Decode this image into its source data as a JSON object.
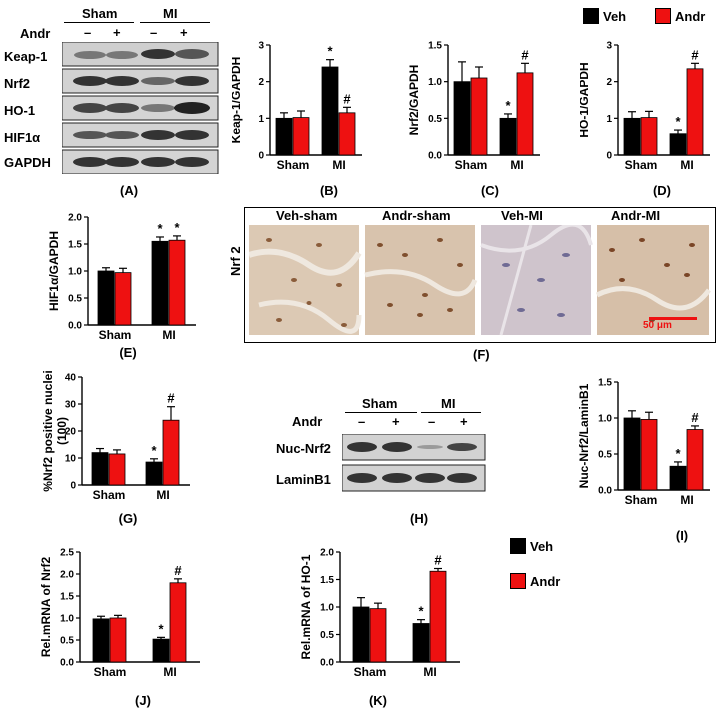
{
  "colors": {
    "veh": "#000000",
    "andr": "#ee1111"
  },
  "legend": {
    "veh": "Veh",
    "andr": "Andr"
  },
  "western_A": {
    "group_sham": "Sham",
    "group_mi": "MI",
    "treat_label": "Andr",
    "treat_marks": [
      "–",
      "+",
      "–",
      "+"
    ],
    "rows": [
      "Keap-1",
      "Nrf2",
      "HO-1",
      "HIF1α",
      "GAPDH"
    ],
    "panel": "(A)"
  },
  "western_H": {
    "group_sham": "Sham",
    "group_mi": "MI",
    "treat_label": "Andr",
    "treat_marks": [
      "–",
      "+",
      "–",
      "+"
    ],
    "rows": [
      "Nuc-Nrf2",
      "LaminB1"
    ],
    "panel": "(H)"
  },
  "micro_F": {
    "titles": [
      "Veh-sham",
      "Andr-sham",
      "Veh-MI",
      "Andr-MI"
    ],
    "row_label": "Nrf 2",
    "scale": "50 μm",
    "panel": "(F)"
  },
  "chart_data": [
    {
      "id": "B",
      "type": "bar",
      "panel": "(B)",
      "ylabel": "Keap-1/GAPDH",
      "categories": [
        "Sham",
        "MI"
      ],
      "series": [
        {
          "name": "Veh",
          "values": [
            1.0,
            2.4
          ],
          "err": [
            0.15,
            0.2
          ]
        },
        {
          "name": "Andr",
          "values": [
            1.02,
            1.15
          ],
          "err": [
            0.18,
            0.15
          ]
        }
      ],
      "ylim": [
        0,
        3
      ],
      "yticks": [
        0,
        1,
        2,
        3
      ],
      "ticklabels": [
        "0",
        "1",
        "2",
        "3"
      ],
      "marks": [
        {
          "series": 1,
          "cat": 1,
          "sym": "*"
        },
        {
          "series": 2,
          "cat": 1,
          "sym": "#"
        }
      ]
    },
    {
      "id": "C",
      "type": "bar",
      "panel": "(C)",
      "ylabel": "Nrf2/GAPDH",
      "categories": [
        "Sham",
        "MI"
      ],
      "series": [
        {
          "name": "Veh",
          "values": [
            1.0,
            0.5
          ],
          "err": [
            0.27,
            0.06
          ]
        },
        {
          "name": "Andr",
          "values": [
            1.05,
            1.12
          ],
          "err": [
            0.15,
            0.13
          ]
        }
      ],
      "ylim": [
        0,
        1.5
      ],
      "yticks": [
        0,
        0.5,
        1,
        1.5
      ],
      "ticklabels": [
        "0.0",
        "0.5",
        "1.0",
        "1.5"
      ],
      "marks": [
        {
          "series": 1,
          "cat": 1,
          "sym": "*"
        },
        {
          "series": 2,
          "cat": 1,
          "sym": "#"
        }
      ]
    },
    {
      "id": "D",
      "type": "bar",
      "panel": "(D)",
      "ylabel": "HO-1/GAPDH",
      "categories": [
        "Sham",
        "MI"
      ],
      "series": [
        {
          "name": "Veh",
          "values": [
            1.0,
            0.58
          ],
          "err": [
            0.18,
            0.1
          ]
        },
        {
          "name": "Andr",
          "values": [
            1.02,
            2.35
          ],
          "err": [
            0.17,
            0.15
          ]
        }
      ],
      "ylim": [
        0,
        3
      ],
      "yticks": [
        0,
        1,
        2,
        3
      ],
      "ticklabels": [
        "0",
        "1",
        "2",
        "3"
      ],
      "marks": [
        {
          "series": 1,
          "cat": 1,
          "sym": "*"
        },
        {
          "series": 2,
          "cat": 1,
          "sym": "#"
        }
      ]
    },
    {
      "id": "E",
      "type": "bar",
      "panel": "(E)",
      "ylabel": "HIF1α/GAPDH",
      "categories": [
        "Sham",
        "MI"
      ],
      "series": [
        {
          "name": "Veh",
          "values": [
            1.0,
            1.55
          ],
          "err": [
            0.06,
            0.08
          ]
        },
        {
          "name": "Andr",
          "values": [
            0.97,
            1.57
          ],
          "err": [
            0.08,
            0.08
          ]
        }
      ],
      "ylim": [
        0,
        2
      ],
      "yticks": [
        0,
        0.5,
        1,
        1.5,
        2
      ],
      "ticklabels": [
        "0.0",
        "0.5",
        "1.0",
        "1.5",
        "2.0"
      ],
      "marks": [
        {
          "series": 1,
          "cat": 1,
          "sym": "*"
        },
        {
          "series": 2,
          "cat": 1,
          "sym": "*"
        }
      ]
    },
    {
      "id": "G",
      "type": "bar",
      "panel": "(G)",
      "ylabel": "%Nrf2 positive nuclei",
      "ylabel2": "(100)",
      "categories": [
        "Sham",
        "MI"
      ],
      "series": [
        {
          "name": "Veh",
          "values": [
            12,
            8.5
          ],
          "err": [
            1.5,
            1.2
          ]
        },
        {
          "name": "Andr",
          "values": [
            11.5,
            24
          ],
          "err": [
            1.5,
            5
          ]
        }
      ],
      "ylim": [
        0,
        40
      ],
      "yticks": [
        0,
        10,
        20,
        30,
        40
      ],
      "ticklabels": [
        "0",
        "10",
        "20",
        "30",
        "40"
      ],
      "marks": [
        {
          "series": 1,
          "cat": 1,
          "sym": "*"
        },
        {
          "series": 2,
          "cat": 1,
          "sym": "#"
        }
      ]
    },
    {
      "id": "I",
      "type": "bar",
      "panel": "(I)",
      "ylabel": "Nuc-Nrf2/LaminB1",
      "categories": [
        "Sham",
        "MI"
      ],
      "series": [
        {
          "name": "Veh",
          "values": [
            1.0,
            0.33
          ],
          "err": [
            0.1,
            0.06
          ]
        },
        {
          "name": "Andr",
          "values": [
            0.98,
            0.84
          ],
          "err": [
            0.1,
            0.05
          ]
        }
      ],
      "ylim": [
        0,
        1.5
      ],
      "yticks": [
        0,
        0.5,
        1,
        1.5
      ],
      "ticklabels": [
        "0.0",
        "0.5",
        "1.0",
        "1.5"
      ],
      "marks": [
        {
          "series": 1,
          "cat": 1,
          "sym": "*"
        },
        {
          "series": 2,
          "cat": 1,
          "sym": "#"
        }
      ]
    },
    {
      "id": "J",
      "type": "bar",
      "panel": "(J)",
      "ylabel": "Rel.mRNA of Nrf2",
      "categories": [
        "Sham",
        "MI"
      ],
      "series": [
        {
          "name": "Veh",
          "values": [
            0.98,
            0.52
          ],
          "err": [
            0.06,
            0.04
          ]
        },
        {
          "name": "Andr",
          "values": [
            1.0,
            1.8
          ],
          "err": [
            0.06,
            0.09
          ]
        }
      ],
      "ylim": [
        0,
        2.5
      ],
      "yticks": [
        0,
        0.5,
        1,
        1.5,
        2,
        2.5
      ],
      "ticklabels": [
        "0.0",
        "0.5",
        "1.0",
        "1.5",
        "2.0",
        "2.5"
      ],
      "marks": [
        {
          "series": 1,
          "cat": 1,
          "sym": "*"
        },
        {
          "series": 2,
          "cat": 1,
          "sym": "#"
        }
      ]
    },
    {
      "id": "K",
      "type": "bar",
      "panel": "(K)",
      "ylabel": "Rel.mRNA of HO-1",
      "categories": [
        "Sham",
        "MI"
      ],
      "series": [
        {
          "name": "Veh",
          "values": [
            1.0,
            0.7
          ],
          "err": [
            0.17,
            0.07
          ]
        },
        {
          "name": "Andr",
          "values": [
            0.97,
            1.65
          ],
          "err": [
            0.1,
            0.05
          ]
        }
      ],
      "ylim": [
        0,
        2
      ],
      "yticks": [
        0,
        0.5,
        1,
        1.5,
        2
      ],
      "ticklabels": [
        "0.0",
        "0.5",
        "1.0",
        "1.5",
        "2.0"
      ],
      "marks": [
        {
          "series": 1,
          "cat": 1,
          "sym": "*"
        },
        {
          "series": 2,
          "cat": 1,
          "sym": "#"
        }
      ]
    }
  ]
}
